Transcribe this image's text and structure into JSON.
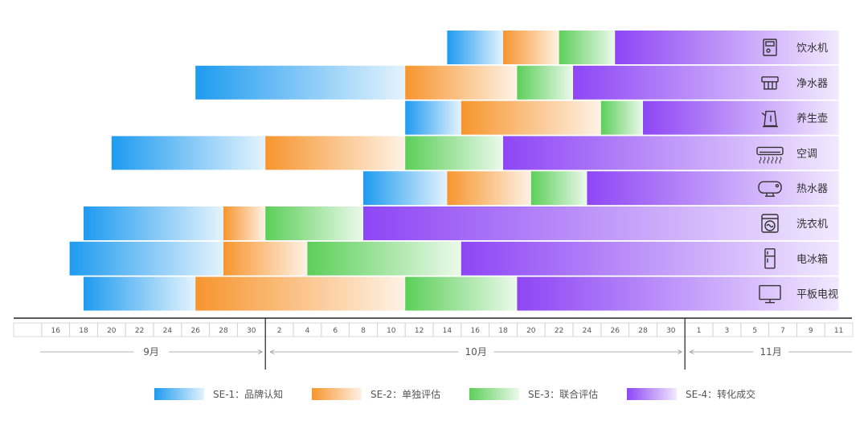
{
  "chart_data": {
    "type": "gantt",
    "stages": [
      {
        "key": "SE-1",
        "label": "SE-1：品牌认知",
        "color": "#1e9bf0"
      },
      {
        "key": "SE-2",
        "label": "SE-2：单独评估",
        "color": "#f7952e"
      },
      {
        "key": "SE-3",
        "label": "SE-3：联合评估",
        "color": "#5ccf59"
      },
      {
        "key": "SE-4",
        "label": "SE-4：转化成交",
        "color": "#8e46f5"
      }
    ],
    "months": [
      {
        "label": "9月"
      },
      {
        "label": "10月"
      },
      {
        "label": "11月"
      }
    ],
    "ticks": [
      "",
      "16",
      "18",
      "20",
      "22",
      "24",
      "26",
      "28",
      "30",
      "2",
      "4",
      "6",
      "8",
      "10",
      "12",
      "14",
      "16",
      "18",
      "20",
      "22",
      "24",
      "26",
      "28",
      "30",
      "1",
      "3",
      "5",
      "7",
      "9",
      "11"
    ],
    "categories": [
      {
        "name": "饮水机",
        "icon": "water-dispenser-icon",
        "segments": [
          {
            "stage": "SE-1",
            "start": "2023-10-15",
            "end": "2023-10-19"
          },
          {
            "stage": "SE-2",
            "start": "2023-10-19",
            "end": "2023-10-23"
          },
          {
            "stage": "SE-3",
            "start": "2023-10-23",
            "end": "2023-10-27"
          },
          {
            "stage": "SE-4",
            "start": "2023-10-27",
            "end": "2023-11-12"
          }
        ]
      },
      {
        "name": "净水器",
        "icon": "water-purifier-icon",
        "segments": [
          {
            "stage": "SE-1",
            "start": "2023-09-27",
            "end": "2023-10-12"
          },
          {
            "stage": "SE-2",
            "start": "2023-10-12",
            "end": "2023-10-20"
          },
          {
            "stage": "SE-3",
            "start": "2023-10-20",
            "end": "2023-10-24"
          },
          {
            "stage": "SE-4",
            "start": "2023-10-24",
            "end": "2023-11-12"
          }
        ]
      },
      {
        "name": "养生壶",
        "icon": "kettle-icon",
        "segments": [
          {
            "stage": "SE-1",
            "start": "2023-10-12",
            "end": "2023-10-16"
          },
          {
            "stage": "SE-2",
            "start": "2023-10-16",
            "end": "2023-10-26"
          },
          {
            "stage": "SE-3",
            "start": "2023-10-26",
            "end": "2023-10-29"
          },
          {
            "stage": "SE-4",
            "start": "2023-10-29",
            "end": "2023-11-12"
          }
        ]
      },
      {
        "name": "空调",
        "icon": "air-conditioner-icon",
        "segments": [
          {
            "stage": "SE-1",
            "start": "2023-09-21",
            "end": "2023-10-02"
          },
          {
            "stage": "SE-2",
            "start": "2023-10-02",
            "end": "2023-10-12"
          },
          {
            "stage": "SE-3",
            "start": "2023-10-12",
            "end": "2023-10-19"
          },
          {
            "stage": "SE-4",
            "start": "2023-10-19",
            "end": "2023-11-12"
          }
        ]
      },
      {
        "name": "热水器",
        "icon": "water-heater-icon",
        "segments": [
          {
            "stage": "SE-1",
            "start": "2023-10-09",
            "end": "2023-10-15"
          },
          {
            "stage": "SE-2",
            "start": "2023-10-15",
            "end": "2023-10-21"
          },
          {
            "stage": "SE-3",
            "start": "2023-10-21",
            "end": "2023-10-25"
          },
          {
            "stage": "SE-4",
            "start": "2023-10-25",
            "end": "2023-11-12"
          }
        ]
      },
      {
        "name": "洗衣机",
        "icon": "washing-machine-icon",
        "segments": [
          {
            "stage": "SE-1",
            "start": "2023-09-19",
            "end": "2023-09-29"
          },
          {
            "stage": "SE-2",
            "start": "2023-09-29",
            "end": "2023-10-02"
          },
          {
            "stage": "SE-3",
            "start": "2023-10-02",
            "end": "2023-10-09"
          },
          {
            "stage": "SE-4",
            "start": "2023-10-09",
            "end": "2023-11-12"
          }
        ]
      },
      {
        "name": "电冰箱",
        "icon": "refrigerator-icon",
        "segments": [
          {
            "stage": "SE-1",
            "start": "2023-09-18",
            "end": "2023-09-29"
          },
          {
            "stage": "SE-2",
            "start": "2023-09-29",
            "end": "2023-10-05"
          },
          {
            "stage": "SE-3",
            "start": "2023-10-05",
            "end": "2023-10-16"
          },
          {
            "stage": "SE-4",
            "start": "2023-10-16",
            "end": "2023-11-12"
          }
        ]
      },
      {
        "name": "平板电视",
        "icon": "tv-icon",
        "segments": [
          {
            "stage": "SE-1",
            "start": "2023-09-19",
            "end": "2023-09-27"
          },
          {
            "stage": "SE-2",
            "start": "2023-09-27",
            "end": "2023-10-12"
          },
          {
            "stage": "SE-3",
            "start": "2023-10-12",
            "end": "2023-10-20"
          },
          {
            "stage": "SE-4",
            "start": "2023-10-20",
            "end": "2023-11-12"
          }
        ]
      }
    ]
  }
}
